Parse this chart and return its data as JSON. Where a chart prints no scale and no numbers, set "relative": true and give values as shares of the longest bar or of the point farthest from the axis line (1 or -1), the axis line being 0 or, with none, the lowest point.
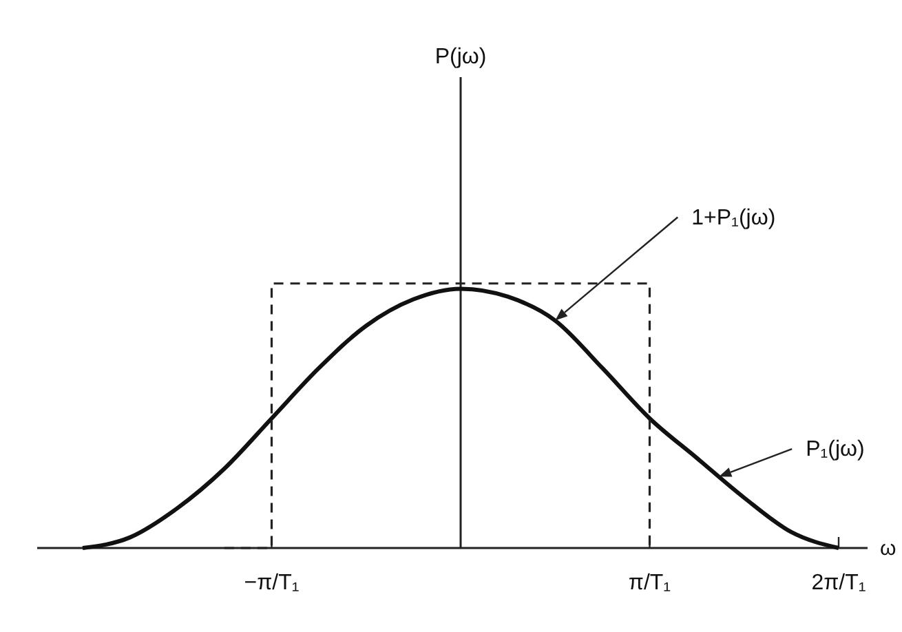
{
  "chart_data": {
    "type": "line",
    "relative": true,
    "xlabel": "ω",
    "categories": [
      null,
      null,
      null,
      null,
      "−π/T₁",
      null,
      null,
      null,
      null,
      null,
      null,
      null,
      "π/T₁",
      null,
      null,
      null,
      "2π/T₁"
    ],
    "series": [
      {
        "color": "#111111",
        "line_style": "solid",
        "values": [
          0,
          0.04,
          0.15,
          0.3,
          0.49,
          0.68,
          0.84,
          0.94,
          0.98,
          0.95,
          0.86,
          0.68,
          0.49,
          0.34,
          0.19,
          0.06,
          0
        ]
      },
      {
        "type": "step",
        "color": "#222222",
        "line_style": "dashed",
        "values": [
          null,
          null,
          null,
          0,
          1,
          1,
          1,
          1,
          1,
          1,
          1,
          1,
          0,
          null,
          null,
          null,
          null
        ]
      }
    ],
    "annotations": [
      "P(jω)",
      "1+P₁(jω)",
      "P₁(jω)"
    ]
  }
}
